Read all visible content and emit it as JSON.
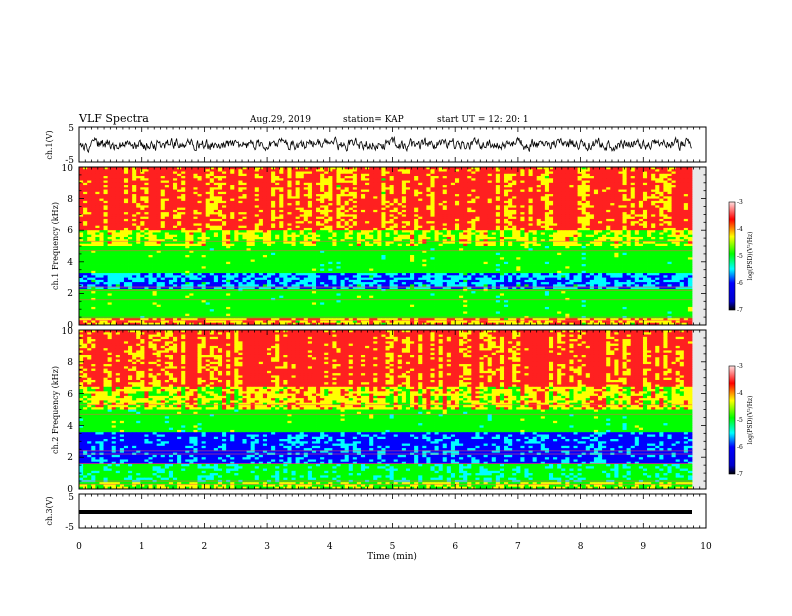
{
  "header": {
    "title": "VLF Spectra",
    "date": "Aug.29, 2019",
    "station": "station= KAP",
    "start": "start  UT  =   12: 20: 1"
  },
  "chart_data": [
    {
      "type": "line",
      "panel": "ch1-waveform",
      "ylabel": "ch.1(V)",
      "ylim": [
        -5,
        5
      ],
      "yticks": [
        "5",
        "-5"
      ],
      "xlim": [
        0,
        10
      ],
      "note": "noisy broadband waveform, amplitude ~ +/-1.5 V"
    },
    {
      "type": "heatmap",
      "panel": "ch1-spectrogram",
      "ylabel": "ch.1 Frequency (kHz)",
      "ylim": [
        0,
        10
      ],
      "yticks": [
        "0",
        "2",
        "4",
        "6",
        "8",
        "10"
      ],
      "xlim": [
        0,
        10
      ],
      "colorbar": {
        "label": "log(PSD)(V²/Hz)",
        "range": [
          -7,
          -3
        ],
        "ticks": [
          "-3",
          "-4",
          "-5",
          "-6",
          "-7"
        ]
      },
      "bands_khz": [
        {
          "from": 0.0,
          "to": 0.4,
          "level": -4.0
        },
        {
          "from": 0.4,
          "to": 2.3,
          "level": -5.0
        },
        {
          "from": 2.3,
          "to": 3.3,
          "level": -6.0
        },
        {
          "from": 3.3,
          "to": 5.0,
          "level": -5.0
        },
        {
          "from": 5.0,
          "to": 6.0,
          "level": -4.5
        },
        {
          "from": 6.0,
          "to": 10.0,
          "level": -3.7
        }
      ]
    },
    {
      "type": "heatmap",
      "panel": "ch2-spectrogram",
      "ylabel": "ch.2 Frequency (kHz)",
      "ylim": [
        0,
        10
      ],
      "yticks": [
        "0",
        "2",
        "4",
        "6",
        "8",
        "10"
      ],
      "xlim": [
        0,
        10
      ],
      "colorbar": {
        "label": "log(PSD)(V²/Hz)",
        "range": [
          -7,
          -3
        ],
        "ticks": [
          "-3",
          "-4",
          "-5",
          "-6",
          "-7"
        ]
      },
      "bands_khz": [
        {
          "from": 0.0,
          "to": 0.4,
          "level": -4.5
        },
        {
          "from": 0.4,
          "to": 1.6,
          "level": -5.3
        },
        {
          "from": 1.6,
          "to": 3.6,
          "level": -6.2
        },
        {
          "from": 3.6,
          "to": 5.0,
          "level": -5.0
        },
        {
          "from": 5.0,
          "to": 6.5,
          "level": -4.2
        },
        {
          "from": 6.5,
          "to": 10.0,
          "level": -3.6
        }
      ]
    },
    {
      "type": "line",
      "panel": "ch3-waveform",
      "ylabel": "ch.3(V)",
      "ylim": [
        -5,
        5
      ],
      "yticks": [
        "5",
        "-5"
      ],
      "xlim": [
        0,
        10
      ],
      "note": "flat thick trace near -1.7 V"
    }
  ],
  "xaxis": {
    "label": "Time  (min)",
    "ticks": [
      "0",
      "1",
      "2",
      "3",
      "4",
      "5",
      "6",
      "7",
      "8",
      "9",
      "10"
    ]
  },
  "colors": {
    "red": "#ff2020",
    "yellow": "#ffff00",
    "green": "#00ff00",
    "cyan": "#00ffff",
    "blue": "#0000ff"
  }
}
